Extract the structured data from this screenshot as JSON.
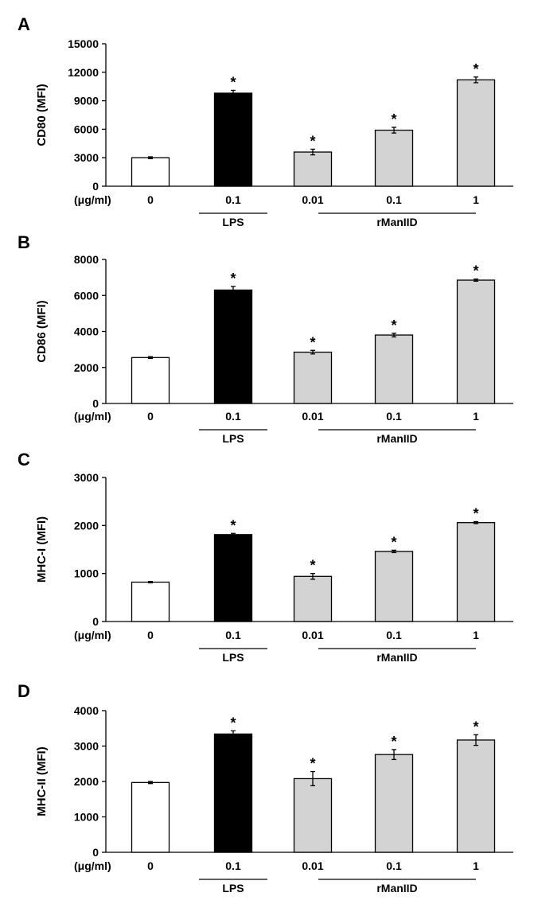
{
  "figure": {
    "panels": [
      "A",
      "B",
      "C",
      "D"
    ],
    "unit_label": "(μg/ml)",
    "groups": [
      {
        "label": "LPS",
        "start": 1,
        "end": 1
      },
      {
        "label": "rManIID",
        "start": 2,
        "end": 4
      }
    ]
  },
  "colors": {
    "control": "#ffffff",
    "lps": "#000000",
    "rmaniid": "#d3d3d3",
    "stroke": "#000000"
  },
  "chart_data": [
    {
      "type": "bar",
      "panel": "A",
      "ylabel": "CD80 (MFI)",
      "categories": [
        "0",
        "0.1",
        "0.01",
        "0.1",
        "1"
      ],
      "ylim": [
        0,
        15000
      ],
      "yticks": [
        0,
        3000,
        6000,
        9000,
        12000,
        15000
      ],
      "yticklabels": [
        "0",
        "3000",
        "6000",
        "9000",
        "12000",
        "15000"
      ],
      "series": [
        {
          "name": "CD80",
          "values": [
            3000,
            9800,
            3600,
            5900,
            11200
          ],
          "errors": [
            100,
            300,
            300,
            300,
            300
          ]
        }
      ],
      "significance": [
        "",
        "*",
        "*",
        "*",
        "*"
      ]
    },
    {
      "type": "bar",
      "panel": "B",
      "ylabel": "CD86 (MFI)",
      "categories": [
        "0",
        "0.1",
        "0.01",
        "0.1",
        "1"
      ],
      "ylim": [
        0,
        8000
      ],
      "yticks": [
        0,
        2000,
        4000,
        6000,
        8000
      ],
      "yticklabels": [
        "0",
        "2000",
        "4000",
        "6000",
        "8000"
      ],
      "series": [
        {
          "name": "CD86",
          "values": [
            2550,
            6300,
            2850,
            3800,
            6850
          ],
          "errors": [
            50,
            200,
            100,
            100,
            60
          ]
        }
      ],
      "significance": [
        "",
        "*",
        "*",
        "*",
        "*"
      ]
    },
    {
      "type": "bar",
      "panel": "C",
      "ylabel": "MHC-I (MFI)",
      "categories": [
        "0",
        "0.1",
        "0.01",
        "0.1",
        "1"
      ],
      "ylim": [
        0,
        3000
      ],
      "yticks": [
        0,
        1000,
        2000,
        3000
      ],
      "yticklabels": [
        "0",
        "1000",
        "2000",
        "3000"
      ],
      "series": [
        {
          "name": "MHC-I",
          "values": [
            820,
            1810,
            940,
            1460,
            2060
          ],
          "errors": [
            15,
            25,
            60,
            25,
            20
          ]
        }
      ],
      "significance": [
        "",
        "*",
        "*",
        "*",
        "*"
      ]
    },
    {
      "type": "bar",
      "panel": "D",
      "ylabel": "MHC-II (MFI)",
      "categories": [
        "0",
        "0.1",
        "0.01",
        "0.1",
        "1"
      ],
      "ylim": [
        0,
        4000
      ],
      "yticks": [
        0,
        1000,
        2000,
        3000,
        4000
      ],
      "yticklabels": [
        "0",
        "1000",
        "2000",
        "3000",
        "4000"
      ],
      "series": [
        {
          "name": "MHC-II",
          "values": [
            1970,
            3340,
            2080,
            2760,
            3170
          ],
          "errors": [
            30,
            90,
            200,
            140,
            150
          ]
        }
      ],
      "significance": [
        "",
        "*",
        "*",
        "*",
        "*"
      ]
    }
  ]
}
